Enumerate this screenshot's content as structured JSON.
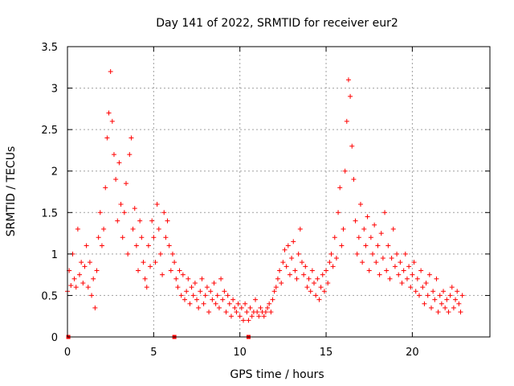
{
  "chart_data": {
    "type": "scatter",
    "title": "Day 141 of 2022, SRMTID for receiver eur2",
    "xlabel": "GPS time / hours",
    "ylabel": "SRMTID / TECUs",
    "xlim": [
      0,
      24.5
    ],
    "ylim": [
      0,
      3.5
    ],
    "grid": true,
    "x_ticks": [
      0,
      5,
      10,
      15,
      20
    ],
    "x_tick_labels": [
      "0",
      "5",
      "10",
      "15",
      "20"
    ],
    "y_ticks": [
      0,
      0.5,
      1,
      1.5,
      2,
      2.5,
      3,
      3.5
    ],
    "y_tick_labels": [
      "0",
      "0.5",
      "1",
      "1.5",
      "2",
      "2.5",
      "3",
      "3.5"
    ],
    "marker": "+",
    "color": "#ff0000",
    "data_gap_markers_x": [
      0.05,
      6.2,
      10.5
    ],
    "series": [
      {
        "name": "SRMTID",
        "x": [
          0.0,
          0.1,
          0.2,
          0.3,
          0.4,
          0.5,
          0.6,
          0.7,
          0.8,
          0.9,
          1.0,
          1.1,
          1.2,
          1.3,
          1.4,
          1.5,
          1.6,
          1.7,
          1.8,
          1.9,
          2.0,
          2.1,
          2.2,
          2.3,
          2.4,
          2.5,
          2.6,
          2.7,
          2.8,
          2.9,
          3.0,
          3.1,
          3.2,
          3.3,
          3.4,
          3.5,
          3.6,
          3.7,
          3.8,
          3.9,
          4.0,
          4.1,
          4.2,
          4.3,
          4.4,
          4.5,
          4.6,
          4.7,
          4.8,
          4.9,
          5.0,
          5.1,
          5.2,
          5.3,
          5.4,
          5.5,
          5.6,
          5.7,
          5.8,
          5.9,
          6.0,
          6.1,
          6.2,
          6.3,
          6.4,
          6.5,
          6.6,
          6.7,
          6.8,
          6.9,
          7.0,
          7.1,
          7.2,
          7.3,
          7.4,
          7.5,
          7.6,
          7.7,
          7.8,
          7.9,
          8.0,
          8.1,
          8.2,
          8.3,
          8.4,
          8.5,
          8.6,
          8.7,
          8.8,
          8.9,
          9.0,
          9.1,
          9.2,
          9.3,
          9.4,
          9.5,
          9.6,
          9.7,
          9.8,
          9.9,
          10.0,
          10.1,
          10.2,
          10.3,
          10.4,
          10.5,
          10.6,
          10.7,
          10.8,
          10.9,
          11.0,
          11.1,
          11.2,
          11.3,
          11.4,
          11.5,
          11.6,
          11.7,
          11.8,
          11.9,
          12.0,
          12.1,
          12.2,
          12.3,
          12.4,
          12.5,
          12.6,
          12.7,
          12.8,
          12.9,
          13.0,
          13.1,
          13.2,
          13.3,
          13.4,
          13.5,
          13.6,
          13.7,
          13.8,
          13.9,
          14.0,
          14.1,
          14.2,
          14.3,
          14.4,
          14.5,
          14.6,
          14.7,
          14.8,
          14.9,
          15.0,
          15.1,
          15.2,
          15.3,
          15.4,
          15.5,
          15.6,
          15.7,
          15.8,
          15.9,
          16.0,
          16.1,
          16.2,
          16.3,
          16.4,
          16.5,
          16.6,
          16.7,
          16.8,
          16.9,
          17.0,
          17.1,
          17.2,
          17.3,
          17.4,
          17.5,
          17.6,
          17.7,
          17.8,
          17.9,
          18.0,
          18.1,
          18.2,
          18.3,
          18.4,
          18.5,
          18.6,
          18.7,
          18.8,
          18.9,
          19.0,
          19.1,
          19.2,
          19.3,
          19.4,
          19.5,
          19.6,
          19.7,
          19.8,
          19.9,
          20.0,
          20.1,
          20.2,
          20.3,
          20.4,
          20.5,
          20.6,
          20.7,
          20.8,
          20.9,
          21.0,
          21.1,
          21.2,
          21.3,
          21.4,
          21.5,
          21.6,
          21.7,
          21.8,
          21.9,
          22.0,
          22.1,
          22.2,
          22.3,
          22.4,
          22.5,
          22.6,
          22.7,
          22.8,
          22.9
        ],
        "y": [
          0.55,
          0.8,
          0.62,
          1.0,
          0.7,
          0.6,
          1.3,
          0.75,
          0.9,
          0.65,
          0.85,
          1.1,
          0.6,
          0.9,
          0.5,
          0.7,
          0.35,
          0.8,
          1.2,
          1.5,
          1.1,
          1.3,
          1.8,
          2.4,
          2.7,
          3.2,
          2.6,
          2.2,
          1.9,
          1.4,
          2.1,
          1.6,
          1.2,
          1.5,
          1.85,
          1.0,
          2.2,
          2.4,
          1.3,
          1.55,
          1.1,
          0.8,
          1.4,
          1.2,
          0.9,
          0.7,
          0.6,
          1.1,
          0.85,
          1.4,
          1.2,
          0.9,
          1.6,
          1.3,
          1.0,
          0.75,
          1.5,
          1.2,
          1.4,
          1.1,
          0.8,
          1.0,
          0.9,
          0.7,
          0.6,
          0.8,
          0.5,
          0.75,
          0.45,
          0.55,
          0.7,
          0.4,
          0.6,
          0.5,
          0.65,
          0.45,
          0.35,
          0.55,
          0.7,
          0.4,
          0.5,
          0.6,
          0.3,
          0.55,
          0.45,
          0.65,
          0.4,
          0.5,
          0.35,
          0.7,
          0.45,
          0.55,
          0.3,
          0.5,
          0.4,
          0.25,
          0.45,
          0.35,
          0.3,
          0.4,
          0.25,
          0.35,
          0.2,
          0.4,
          0.3,
          0.2,
          0.35,
          0.25,
          0.3,
          0.45,
          0.3,
          0.25,
          0.35,
          0.3,
          0.25,
          0.3,
          0.35,
          0.4,
          0.3,
          0.45,
          0.55,
          0.6,
          0.7,
          0.8,
          0.65,
          0.9,
          1.05,
          0.85,
          1.1,
          0.75,
          0.95,
          1.15,
          0.8,
          0.7,
          1.0,
          1.3,
          0.9,
          0.75,
          0.85,
          0.6,
          0.7,
          0.55,
          0.8,
          0.65,
          0.5,
          0.7,
          0.45,
          0.6,
          0.75,
          0.55,
          0.8,
          0.65,
          0.9,
          1.0,
          0.85,
          1.2,
          0.95,
          1.5,
          1.8,
          1.1,
          1.3,
          2.0,
          2.6,
          3.1,
          2.9,
          2.3,
          1.9,
          1.4,
          1.0,
          1.2,
          1.6,
          0.9,
          1.3,
          1.1,
          1.45,
          0.8,
          1.2,
          1.0,
          1.35,
          0.9,
          1.1,
          0.75,
          1.25,
          0.95,
          1.5,
          0.8,
          1.1,
          0.7,
          0.95,
          1.3,
          0.85,
          1.0,
          0.75,
          0.9,
          0.65,
          0.8,
          1.0,
          0.7,
          0.85,
          0.6,
          0.75,
          0.9,
          0.55,
          0.7,
          0.5,
          0.8,
          0.6,
          0.4,
          0.65,
          0.5,
          0.75,
          0.35,
          0.55,
          0.45,
          0.7,
          0.3,
          0.5,
          0.4,
          0.55,
          0.35,
          0.45,
          0.3,
          0.5,
          0.6,
          0.35,
          0.45,
          0.55,
          0.4,
          0.3,
          0.5
        ]
      }
    ]
  }
}
